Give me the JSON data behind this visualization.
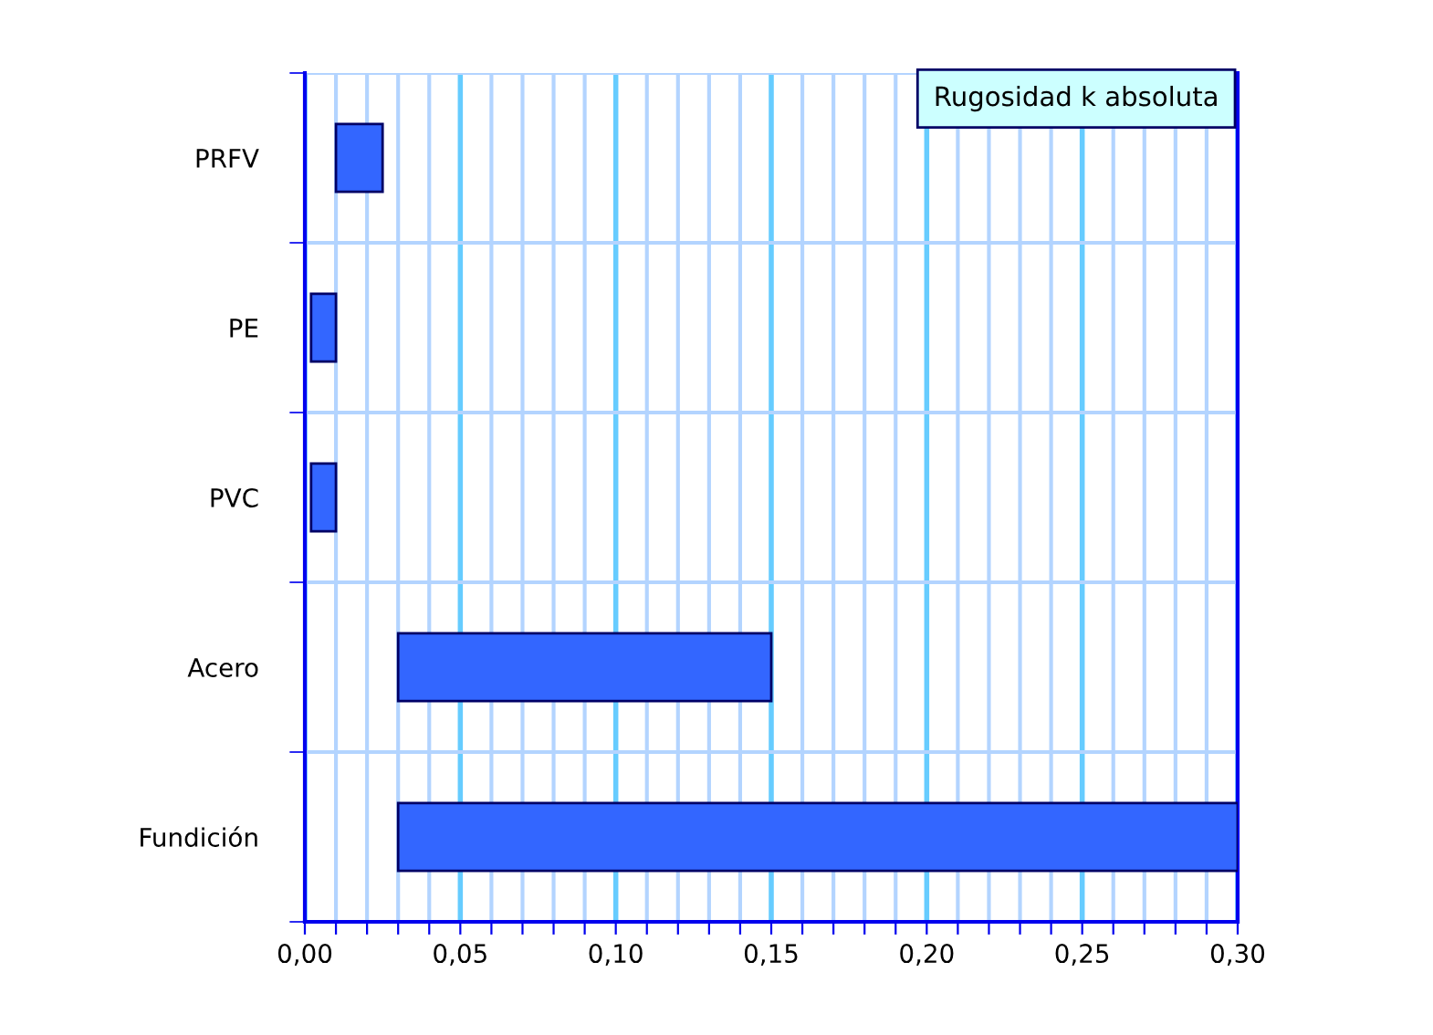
{
  "chart_data": {
    "type": "bar",
    "orientation": "horizontal",
    "title": "Rugosidad k absoluta",
    "categories": [
      "PRFV",
      "PE",
      "PVC",
      "Acero",
      "Fundición"
    ],
    "base": [
      0.01,
      0.002,
      0.002,
      0.03,
      0.03
    ],
    "values": [
      0.015,
      0.008,
      0.008,
      0.12,
      0.27
    ],
    "color": "#3366ff",
    "xlim": [
      0,
      0.3
    ],
    "xticks": [
      {
        "value": 0,
        "label": "0,00"
      },
      {
        "value": 0.01,
        "label": null
      },
      {
        "value": 0.02,
        "label": null
      },
      {
        "value": 0.03,
        "label": null
      },
      {
        "value": 0.04,
        "label": null
      },
      {
        "value": 0.05,
        "label": "0,05"
      },
      {
        "value": 0.06,
        "label": null
      },
      {
        "value": 0.07,
        "label": null
      },
      {
        "value": 0.08,
        "label": null
      },
      {
        "value": 0.09,
        "label": null
      },
      {
        "value": 0.1,
        "label": "0,10"
      },
      {
        "value": 0.11,
        "label": null
      },
      {
        "value": 0.12,
        "label": null
      },
      {
        "value": 0.13,
        "label": null
      },
      {
        "value": 0.14,
        "label": null
      },
      {
        "value": 0.15,
        "label": "0,15"
      },
      {
        "value": 0.16,
        "label": null
      },
      {
        "value": 0.17,
        "label": null
      },
      {
        "value": 0.18,
        "label": null
      },
      {
        "value": 0.19,
        "label": null
      },
      {
        "value": 0.2,
        "label": "0,20"
      },
      {
        "value": 0.21,
        "label": null
      },
      {
        "value": 0.22,
        "label": null
      },
      {
        "value": 0.23,
        "label": null
      },
      {
        "value": 0.24,
        "label": null
      },
      {
        "value": 0.25,
        "label": "0,25"
      },
      {
        "value": 0.26,
        "label": null
      },
      {
        "value": 0.27,
        "label": null
      },
      {
        "value": 0.28,
        "label": null
      },
      {
        "value": 0.29,
        "label": null
      },
      {
        "value": 0.3,
        "label": "0,30"
      }
    ],
    "grid": true
  }
}
